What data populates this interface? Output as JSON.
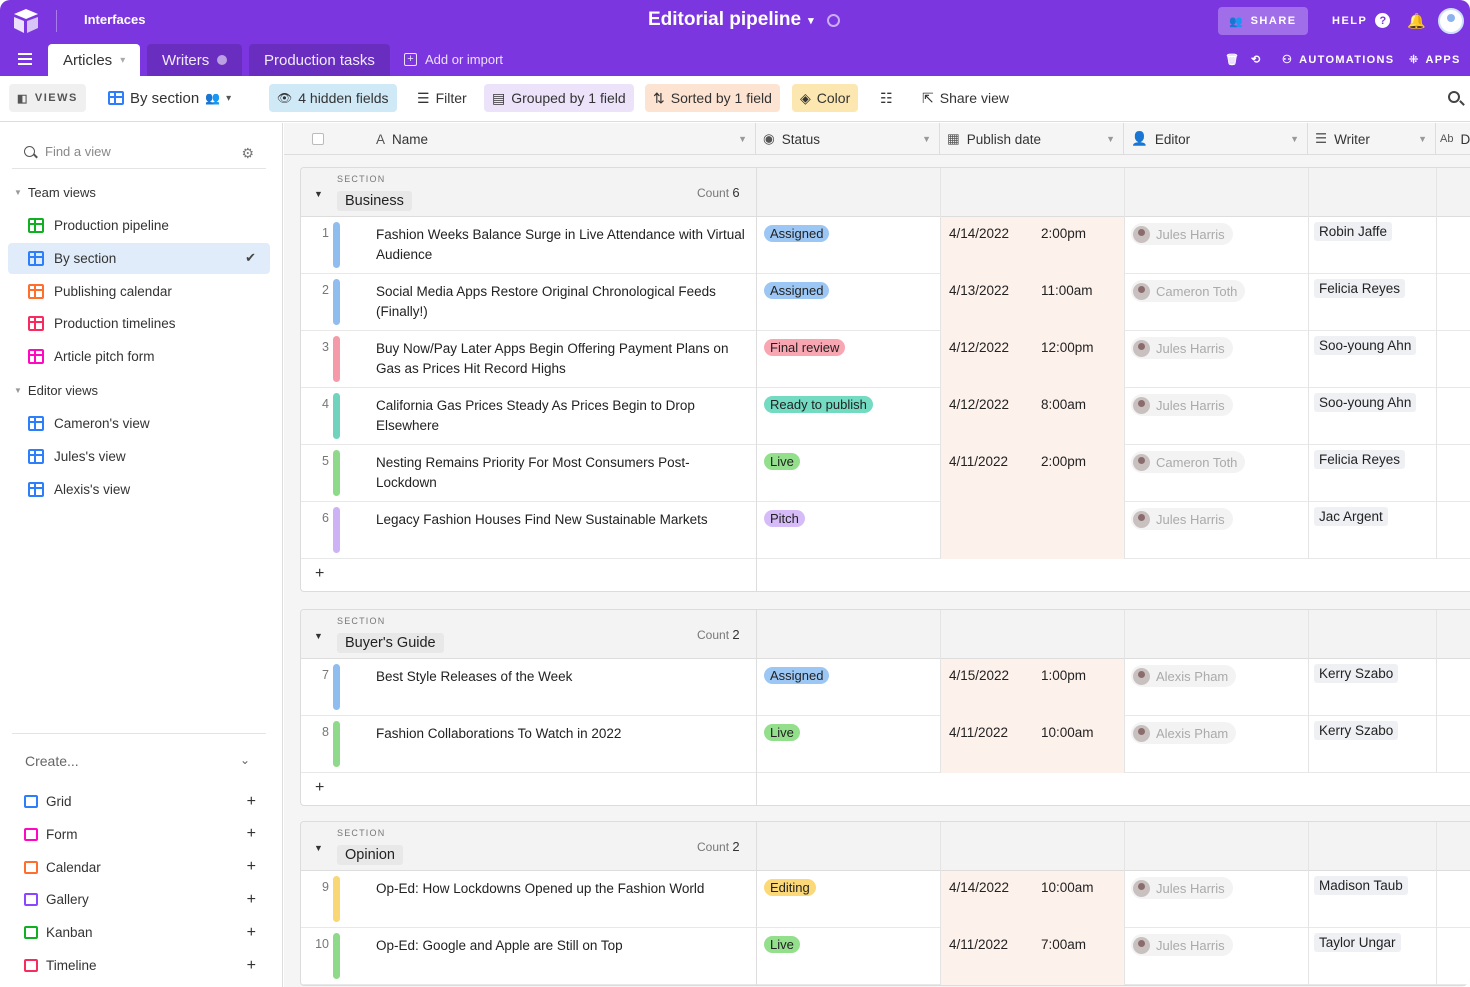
{
  "topbar": {
    "interfaces": "Interfaces",
    "base_title": "Editorial pipeline",
    "share": "SHARE",
    "help": "HELP",
    "automations": "AUTOMATIONS",
    "apps": "APPS",
    "bg_color": "#7b36e0"
  },
  "tabs": [
    {
      "label": "Articles"
    },
    {
      "label": "Writers"
    },
    {
      "label": "Production tasks"
    }
  ],
  "add_import": "Add or import",
  "toolbar": {
    "views": "VIEWS",
    "current_view": "By section",
    "hidden_fields": "4 hidden fields",
    "filter": "Filter",
    "grouped": "Grouped by 1 field",
    "sorted": "Sorted by 1 field",
    "color": "Color",
    "share_view": "Share view"
  },
  "sidebar": {
    "find_placeholder": "Find a view",
    "team_views_label": "Team views",
    "team_views": [
      {
        "label": "Production pipeline",
        "icon": "kanban-icon",
        "color": "#11af22"
      },
      {
        "label": "By section",
        "icon": "grid-icon",
        "color": "#2d7ff9",
        "selected": true
      },
      {
        "label": "Publishing calendar",
        "icon": "calendar-icon",
        "color": "#ff6f2c"
      },
      {
        "label": "Production timelines",
        "icon": "timeline-icon",
        "color": "#f82b60"
      },
      {
        "label": "Article pitch form",
        "icon": "form-icon",
        "color": "#ff08c2"
      }
    ],
    "editor_views_label": "Editor views",
    "editor_views": [
      {
        "label": "Cameron's view",
        "icon": "grid-icon",
        "color": "#2d7ff9"
      },
      {
        "label": "Jules's view",
        "icon": "grid-icon",
        "color": "#2d7ff9"
      },
      {
        "label": "Alexis's view",
        "icon": "grid-icon",
        "color": "#2d7ff9"
      }
    ],
    "create_label": "Create...",
    "create_items": [
      {
        "label": "Grid",
        "color": "#2d7ff9"
      },
      {
        "label": "Form",
        "color": "#ff08c2"
      },
      {
        "label": "Calendar",
        "color": "#ff6f2c"
      },
      {
        "label": "Gallery",
        "color": "#8b46ff"
      },
      {
        "label": "Kanban",
        "color": "#11af22"
      },
      {
        "label": "Timeline",
        "color": "#f82b60"
      }
    ]
  },
  "columns": {
    "name": "Name",
    "status": "Status",
    "publish_date": "Publish date",
    "editor": "Editor",
    "writer": "Writer",
    "extra": "D"
  },
  "section_label": "SECTION",
  "count_label": "Count",
  "groups": [
    {
      "name": "Business",
      "count": "6",
      "rows": [
        {
          "num": "1",
          "title": "Fashion Weeks Balance Surge in Live Attendance with Virtual Audience",
          "status": "Assigned",
          "date": "4/14/2022",
          "time": "2:00pm",
          "editor": "Jules Harris",
          "writer": "Robin Jaffe",
          "bar": "#8fbdf0",
          "status_bg": "#9cc7f4"
        },
        {
          "num": "2",
          "title": "Social Media Apps Restore Original Chronological Feeds (Finally!)",
          "status": "Assigned",
          "date": "4/13/2022",
          "time": "11:00am",
          "editor": "Cameron Toth",
          "writer": "Felicia Reyes",
          "bar": "#8fbdf0",
          "status_bg": "#9cc7f4"
        },
        {
          "num": "3",
          "title": "Buy Now/Pay Later Apps Begin Offering Payment Plans on Gas as Prices Hit Record Highs",
          "status": "Final review",
          "date": "4/12/2022",
          "time": "12:00pm",
          "editor": "Jules Harris",
          "writer": "Soo-young Ahn",
          "bar": "#f59aa8",
          "status_bg": "#f9a6b3"
        },
        {
          "num": "4",
          "title": "California Gas Prices Steady As Prices Begin to Drop Elsewhere",
          "status": "Ready to publish",
          "date": "4/12/2022",
          "time": "8:00am",
          "editor": "Jules Harris",
          "writer": "Soo-young Ahn",
          "bar": "#6fd3bd",
          "status_bg": "#72dbc2"
        },
        {
          "num": "5",
          "title": "Nesting Remains Priority For Most Consumers Post-Lockdown",
          "status": "Live",
          "date": "4/11/2022",
          "time": "2:00pm",
          "editor": "Cameron Toth",
          "writer": "Felicia Reyes",
          "bar": "#8fd98a",
          "status_bg": "#93df8c"
        },
        {
          "num": "6",
          "title": "Legacy Fashion Houses Find New Sustainable Markets",
          "status": "Pitch",
          "date": "",
          "time": "",
          "editor": "Jules Harris",
          "writer": "Jac Argent",
          "bar": "#cdb2f5",
          "status_bg": "#d5bbf7"
        }
      ]
    },
    {
      "name": "Buyer's Guide",
      "count": "2",
      "rows": [
        {
          "num": "7",
          "title": "Best Style Releases of the Week",
          "status": "Assigned",
          "date": "4/15/2022",
          "time": "1:00pm",
          "editor": "Alexis Pham",
          "writer": "Kerry Szabo",
          "bar": "#8fbdf0",
          "status_bg": "#9cc7f4"
        },
        {
          "num": "8",
          "title": "Fashion Collaborations To Watch in 2022",
          "status": "Live",
          "date": "4/11/2022",
          "time": "10:00am",
          "editor": "Alexis Pham",
          "writer": "Kerry Szabo",
          "bar": "#8fd98a",
          "status_bg": "#93df8c"
        }
      ]
    },
    {
      "name": "Opinion",
      "count": "2",
      "rows": [
        {
          "num": "9",
          "title": "Op-Ed: How Lockdowns Opened up the Fashion World",
          "status": "Editing",
          "date": "4/14/2022",
          "time": "10:00am",
          "editor": "Jules Harris",
          "writer": "Madison Taub",
          "bar": "#f8d774",
          "status_bg": "#fbd878"
        },
        {
          "num": "10",
          "title": "Op-Ed: Google and Apple are Still on Top",
          "status": "Live",
          "date": "4/11/2022",
          "time": "7:00am",
          "editor": "Jules Harris",
          "writer": "Taylor Ungar",
          "bar": "#8fd98a",
          "status_bg": "#93df8c"
        }
      ]
    }
  ]
}
